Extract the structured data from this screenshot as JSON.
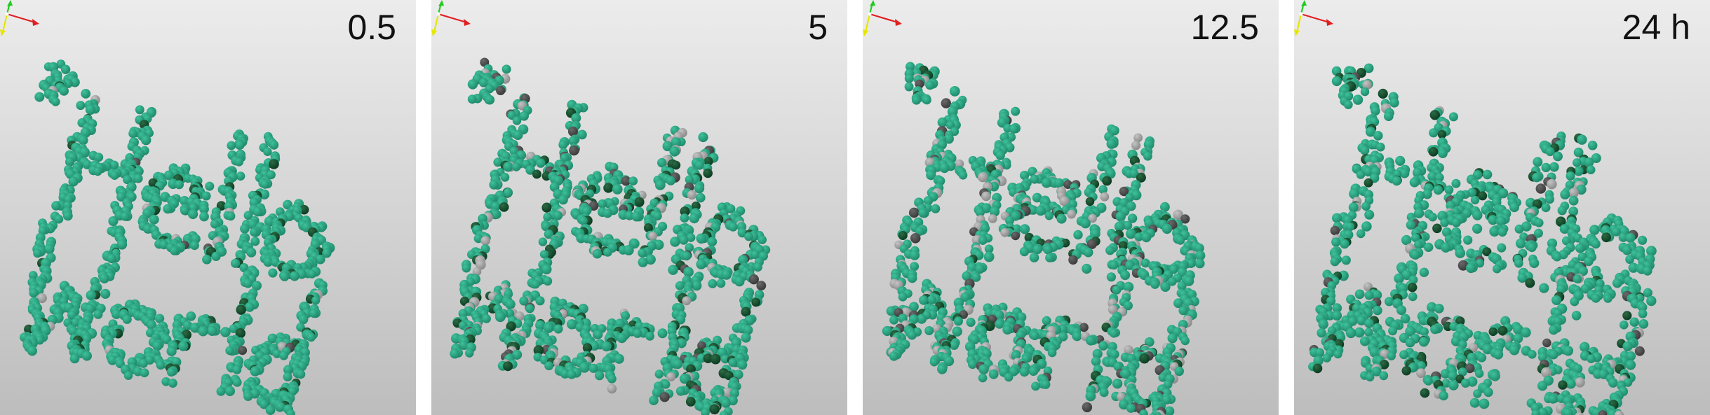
{
  "panels": [
    {
      "label": "0.5",
      "spread": 1.0,
      "gray_fraction": 0.02,
      "dark_fraction": 0.05
    },
    {
      "label": "5",
      "spread": 1.08,
      "gray_fraction": 0.12,
      "dark_fraction": 0.1
    },
    {
      "label": "12.5",
      "spread": 1.16,
      "gray_fraction": 0.16,
      "dark_fraction": 0.06
    },
    {
      "label": "24 h",
      "spread": 1.45,
      "gray_fraction": 0.07,
      "dark_fraction": 0.08
    }
  ],
  "colors": {
    "bead_main": "#1f8a6b",
    "bead_highlight": "#3fc29c",
    "bead_dark": "#0b3d22",
    "bead_gray": "#8a8a8a",
    "bead_charcoal": "#3a3a3a",
    "axis_x": "#e02020",
    "axis_y": "#22cc22",
    "axis_z": "#e6e600"
  },
  "icons": {
    "axes_triad": "xyz-axes-icon"
  }
}
